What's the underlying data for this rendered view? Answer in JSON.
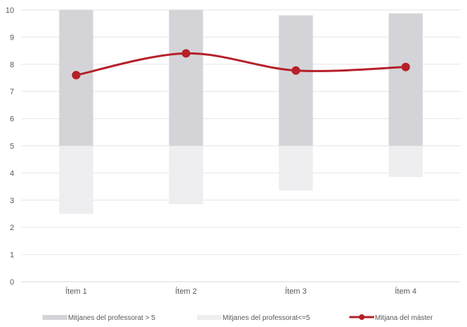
{
  "chart_data": {
    "type": "bar",
    "categories": [
      "Ítem 1",
      "Ítem 2",
      "Ítem 3",
      "Ítem 4"
    ],
    "series": [
      {
        "name": "Mitjanes del professorat > 5",
        "kind": "floating-bar",
        "low": [
          5,
          5,
          5,
          5
        ],
        "high": [
          10,
          10,
          9.8,
          9.87
        ],
        "color": "#d4d4d8"
      },
      {
        "name": "Mitjanes del professorat<=5",
        "kind": "floating-bar",
        "low": [
          2.5,
          2.85,
          3.35,
          3.85
        ],
        "high": [
          5,
          5,
          5,
          5
        ],
        "color": "#eeeef0"
      },
      {
        "name": "Mitjana del màster",
        "kind": "line",
        "values": [
          7.6,
          8.4,
          7.77,
          7.9
        ],
        "color": "#b5202a"
      }
    ],
    "ylim": [
      0,
      10
    ],
    "yticks": [
      "0",
      "1",
      "2",
      "3",
      "4",
      "5",
      "6",
      "7",
      "8",
      "9",
      "10"
    ],
    "xlabel": "",
    "ylabel": "",
    "grid": true,
    "legend_position": "bottom"
  }
}
